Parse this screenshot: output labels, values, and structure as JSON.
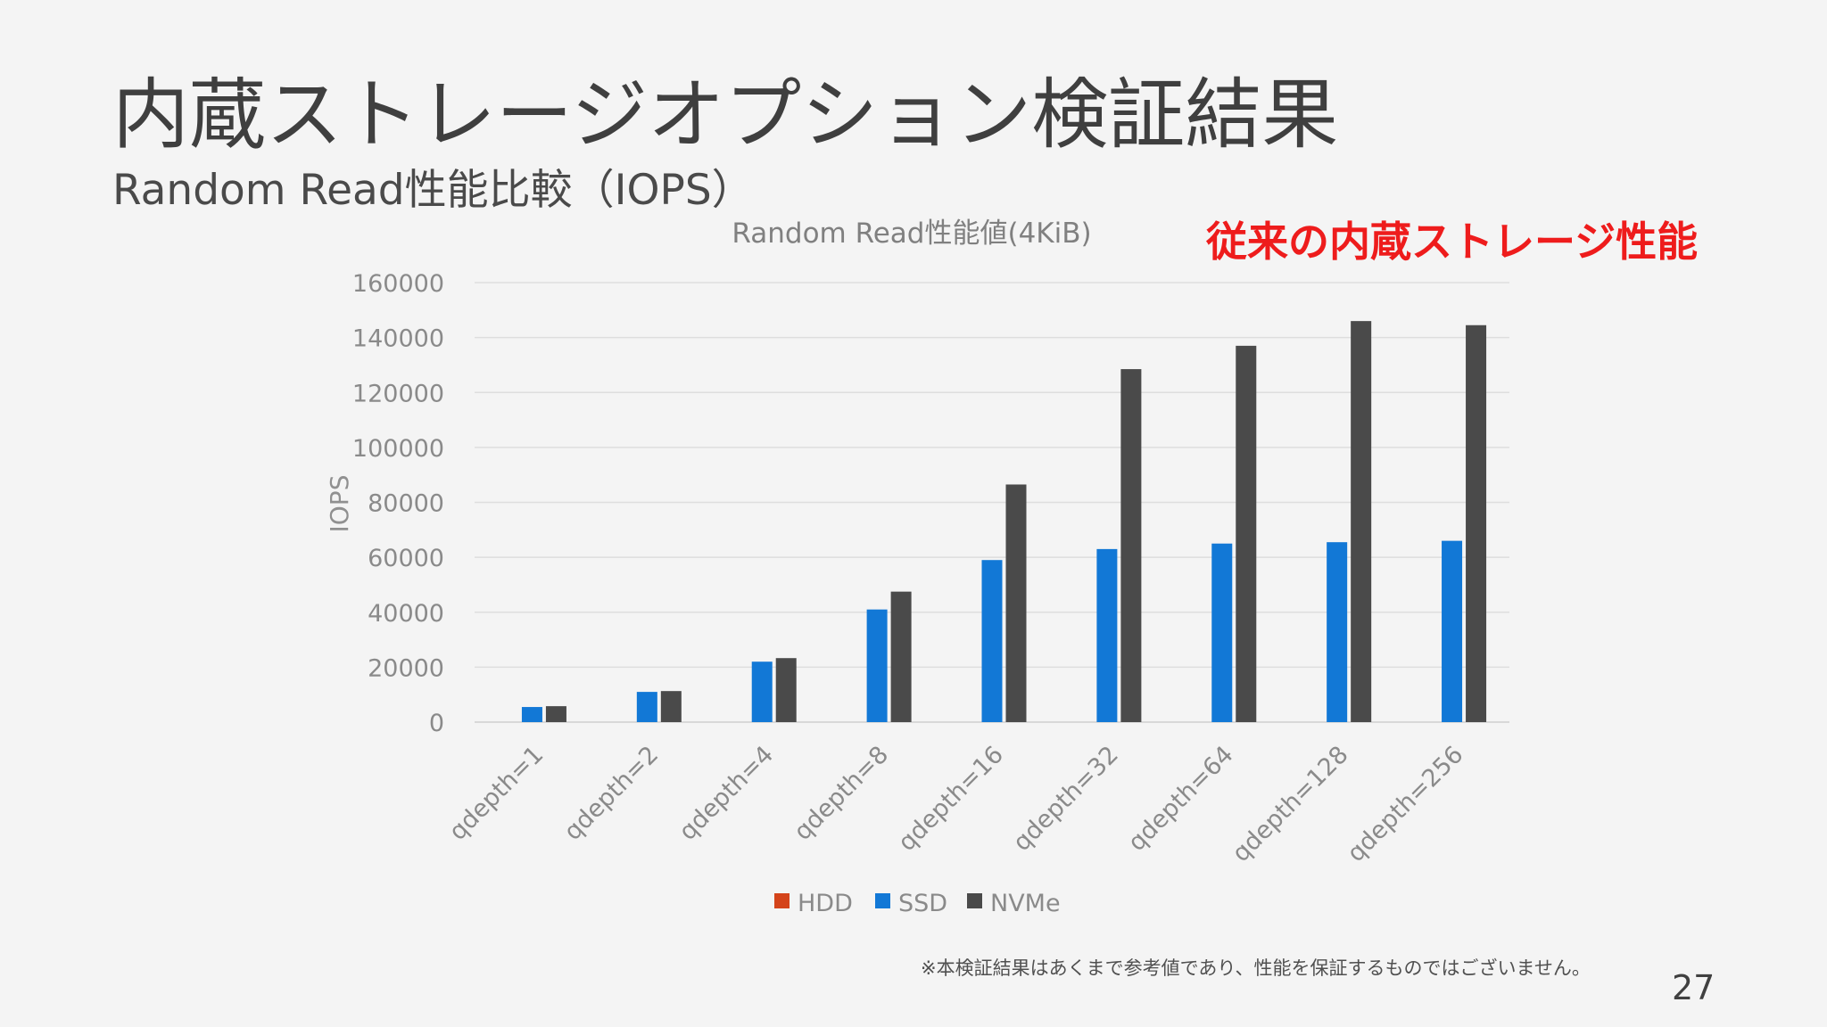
{
  "slide": {
    "title": "内蔵ストレージオプション検証結果",
    "subtitle": "Random Read性能比較（IOPS）",
    "callout": "従来の内蔵ストレージ性能",
    "footnote": "※本検証結果はあくまで参考値であり、性能を保証するものではございません。",
    "page_number": "27"
  },
  "chart_data": {
    "type": "bar",
    "title": "Random Read性能値(4KiB)",
    "xlabel": "",
    "ylabel": "IOPS",
    "ylim": [
      0,
      160000
    ],
    "yticks": [
      "0",
      "20000",
      "40000",
      "60000",
      "80000",
      "100000",
      "120000",
      "140000",
      "160000"
    ],
    "grid": true,
    "legend_position": "bottom",
    "categories": [
      "qdepth=1",
      "qdepth=2",
      "qdepth=4",
      "qdepth=8",
      "qdepth=16",
      "qdepth=32",
      "qdepth=64",
      "qdepth=128",
      "qdepth=256"
    ],
    "series": [
      {
        "name": "HDD",
        "color": "#d4441a",
        "values": [
          0,
          0,
          0,
          0,
          0,
          0,
          0,
          0,
          0
        ]
      },
      {
        "name": "SSD",
        "color": "#1278d6",
        "values": [
          5500,
          11000,
          22000,
          41000,
          59000,
          63000,
          65000,
          65500,
          66000
        ]
      },
      {
        "name": "NVMe",
        "color": "#4a4a4a",
        "values": [
          5800,
          11300,
          23300,
          47500,
          86500,
          128500,
          137000,
          146000,
          144500
        ]
      }
    ]
  }
}
